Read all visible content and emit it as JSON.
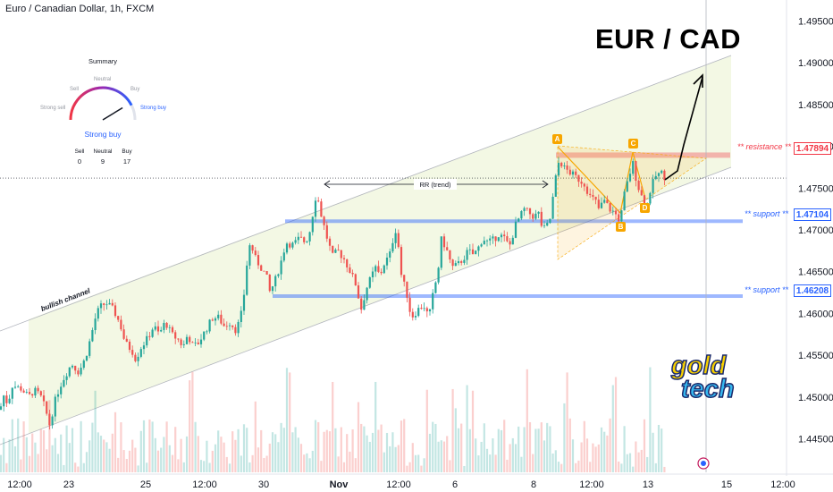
{
  "header": {
    "symbol_title": "Euro / Canadian Dollar, 1h, FXCM"
  },
  "title": "EUR / CAD",
  "chart_data": {
    "type": "candlestick",
    "symbol": "EURCAD",
    "interval": "1h",
    "ylim": [
      1.441,
      1.4975
    ],
    "y_ticks": [
      "1.49500",
      "1.49000",
      "1.48500",
      "1.48000",
      "1.47500",
      "1.47000",
      "1.46500",
      "1.46000",
      "1.45500",
      "1.45000",
      "1.44500"
    ],
    "x_ticks": [
      "12:00",
      "23",
      "25",
      "12:00",
      "30",
      "Nov",
      "12:00",
      "6",
      "8",
      "12:00",
      "13",
      "15",
      "12:00"
    ],
    "price_path": [
      [
        0,
        1.4485
      ],
      [
        5,
        1.4505
      ],
      [
        8,
        1.4492
      ],
      [
        12,
        1.4505
      ],
      [
        14,
        1.4515
      ],
      [
        18,
        1.4512
      ],
      [
        24,
        1.451
      ],
      [
        32,
        1.45
      ],
      [
        38,
        1.4508
      ],
      [
        45,
        1.4502
      ],
      [
        50,
        1.4488
      ],
      [
        56,
        1.4465
      ],
      [
        60,
        1.449
      ],
      [
        66,
        1.451
      ],
      [
        70,
        1.452
      ],
      [
        80,
        1.454
      ],
      [
        88,
        1.453
      ],
      [
        95,
        1.4545
      ],
      [
        100,
        1.4565
      ],
      [
        108,
        1.46
      ],
      [
        114,
        1.461
      ],
      [
        120,
        1.4612
      ],
      [
        126,
        1.4605
      ],
      [
        130,
        1.4598
      ],
      [
        135,
        1.4585
      ],
      [
        140,
        1.4565
      ],
      [
        148,
        1.4555
      ],
      [
        152,
        1.4545
      ],
      [
        158,
        1.456
      ],
      [
        165,
        1.457
      ],
      [
        172,
        1.4585
      ],
      [
        178,
        1.4575
      ],
      [
        185,
        1.459
      ],
      [
        192,
        1.4575
      ],
      [
        200,
        1.4568
      ],
      [
        205,
        1.456
      ],
      [
        210,
        1.4575
      ],
      [
        216,
        1.456
      ],
      [
        222,
        1.4565
      ],
      [
        230,
        1.458
      ],
      [
        238,
        1.4595
      ],
      [
        245,
        1.4595
      ],
      [
        250,
        1.4585
      ],
      [
        258,
        1.459
      ],
      [
        263,
        1.458
      ],
      [
        268,
        1.459
      ],
      [
        272,
        1.461
      ],
      [
        275,
        1.465
      ],
      [
        280,
        1.4685
      ],
      [
        286,
        1.4665
      ],
      [
        292,
        1.4655
      ],
      [
        298,
        1.4645
      ],
      [
        302,
        1.4625
      ],
      [
        308,
        1.464
      ],
      [
        314,
        1.466
      ],
      [
        320,
        1.4685
      ],
      [
        328,
        1.4682
      ],
      [
        335,
        1.469
      ],
      [
        342,
        1.4685
      ],
      [
        347,
        1.47
      ],
      [
        350,
        1.472
      ],
      [
        354,
        1.4745
      ],
      [
        360,
        1.4715
      ],
      [
        366,
        1.469
      ],
      [
        372,
        1.4668
      ],
      [
        378,
        1.4675
      ],
      [
        385,
        1.4665
      ],
      [
        392,
        1.465
      ],
      [
        398,
        1.4635
      ],
      [
        404,
        1.4605
      ],
      [
        410,
        1.463
      ],
      [
        416,
        1.4645
      ],
      [
        420,
        1.4655
      ],
      [
        425,
        1.4645
      ],
      [
        430,
        1.466
      ],
      [
        436,
        1.467
      ],
      [
        440,
        1.469
      ],
      [
        444,
        1.4705
      ],
      [
        448,
        1.465
      ],
      [
        452,
        1.4635
      ],
      [
        456,
        1.462
      ],
      [
        460,
        1.4595
      ],
      [
        464,
        1.46
      ],
      [
        468,
        1.4605
      ],
      [
        474,
        1.461
      ],
      [
        480,
        1.4595
      ],
      [
        484,
        1.462
      ],
      [
        490,
        1.465
      ],
      [
        494,
        1.469
      ],
      [
        500,
        1.4675
      ],
      [
        506,
        1.4655
      ],
      [
        512,
        1.4658
      ],
      [
        518,
        1.4665
      ],
      [
        524,
        1.4675
      ],
      [
        530,
        1.467
      ],
      [
        536,
        1.468
      ],
      [
        540,
        1.469
      ],
      [
        546,
        1.4685
      ],
      [
        552,
        1.4688
      ],
      [
        558,
        1.4695
      ],
      [
        564,
        1.469
      ],
      [
        570,
        1.468
      ],
      [
        574,
        1.4695
      ],
      [
        578,
        1.471
      ],
      [
        582,
        1.4715
      ],
      [
        586,
        1.4725
      ],
      [
        592,
        1.472
      ],
      [
        598,
        1.4715
      ],
      [
        602,
        1.4722
      ],
      [
        606,
        1.4705
      ],
      [
        610,
        1.47
      ],
      [
        616,
        1.4715
      ],
      [
        620,
        1.475
      ],
      [
        623,
        1.477
      ],
      [
        626,
        1.4785
      ],
      [
        630,
        1.4775
      ],
      [
        636,
        1.477
      ],
      [
        642,
        1.4765
      ],
      [
        648,
        1.476
      ],
      [
        654,
        1.4755
      ],
      [
        660,
        1.474
      ],
      [
        666,
        1.4735
      ],
      [
        670,
        1.4725
      ],
      [
        676,
        1.4735
      ],
      [
        682,
        1.4725
      ],
      [
        688,
        1.472
      ],
      [
        694,
        1.471
      ],
      [
        698,
        1.474
      ],
      [
        704,
        1.4765
      ],
      [
        708,
        1.478
      ],
      [
        712,
        1.476
      ],
      [
        716,
        1.4745
      ],
      [
        720,
        1.4735
      ],
      [
        724,
        1.473
      ],
      [
        728,
        1.475
      ],
      [
        734,
        1.4765
      ],
      [
        740,
        1.4768
      ],
      [
        745,
        1.4762
      ]
    ],
    "volume_scale": [
      0,
      1
    ],
    "channel": {
      "label": "bullish channel"
    },
    "measure_label": "RR (trend)",
    "levels": [
      {
        "label": "** resistance **",
        "value": "1.47894",
        "color": "#f23645"
      },
      {
        "label": "** support **",
        "value": "1.47104",
        "color": "#2962ff"
      },
      {
        "label": "** support **",
        "value": "1.46208",
        "color": "#2962ff"
      }
    ],
    "last_price": 1.4762,
    "pattern_points": [
      "A",
      "B",
      "C",
      "D"
    ],
    "grid": false
  },
  "summary": {
    "title": "Summary",
    "gauge_labels": [
      "Strong sell",
      "Sell",
      "Neutral",
      "Buy",
      "Strong buy"
    ],
    "verdict": "Strong buy",
    "gauge_level": 0.85,
    "counts": [
      {
        "label": "Sell",
        "value": "0"
      },
      {
        "label": "Neutral",
        "value": "9"
      },
      {
        "label": "Buy",
        "value": "17"
      }
    ]
  },
  "logo": {
    "line1": "gold",
    "line2": "tech"
  },
  "colors": {
    "up": "#26a69a",
    "down": "#ef5350",
    "resistance": "#f23645",
    "support": "#2962ff",
    "pattern": "#f7a600",
    "channel_fill": "#f3f8e4"
  }
}
